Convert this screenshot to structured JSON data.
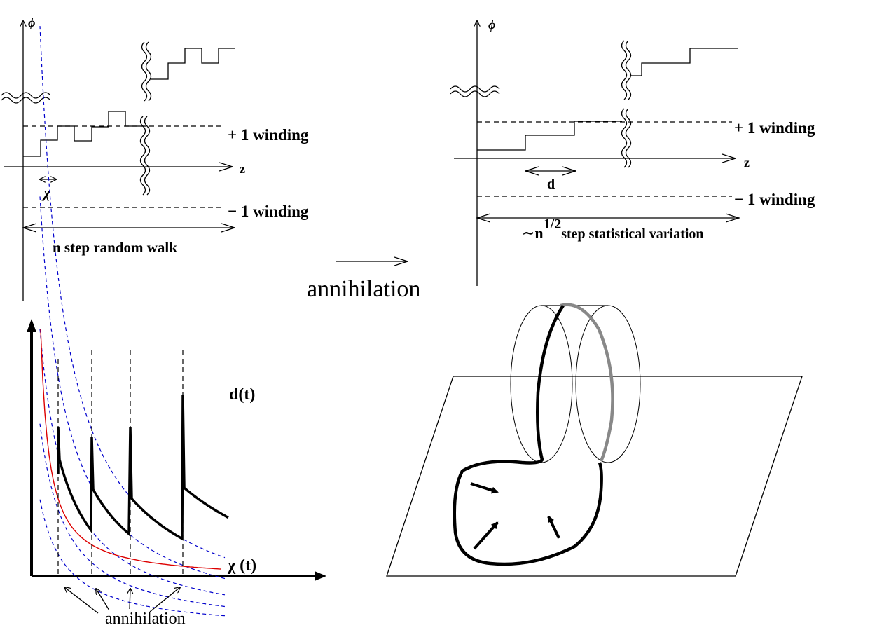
{
  "panel_top_left": {
    "axis_y_label": "ϕ",
    "axis_x_label": "z",
    "plus_winding": "+ 1 winding",
    "minus_winding": "− 1 winding",
    "step_label": "χ",
    "walk_label": "n step random walk"
  },
  "transition": {
    "label": "annihilation"
  },
  "panel_top_right": {
    "axis_y_label": "ϕ",
    "axis_x_label": "z",
    "plus_winding": "+ 1 winding",
    "minus_winding": "− 1 winding",
    "step_label": "d",
    "variation_prefix": "∼n",
    "variation_exp": "1/2",
    "variation_suffix": "step statistical variation"
  },
  "panel_bottom_left": {
    "curve_d_label": "d(t)",
    "curve_chi_label": "χ (t)",
    "annihilation_label": "annihilation",
    "colors": {
      "guide": "#0000cc",
      "chi": "#dd0000",
      "d": "#000000"
    }
  },
  "panel_bottom_right": {
    "colors": {
      "front_loop": "#000000",
      "back_loop": "#888888"
    }
  }
}
